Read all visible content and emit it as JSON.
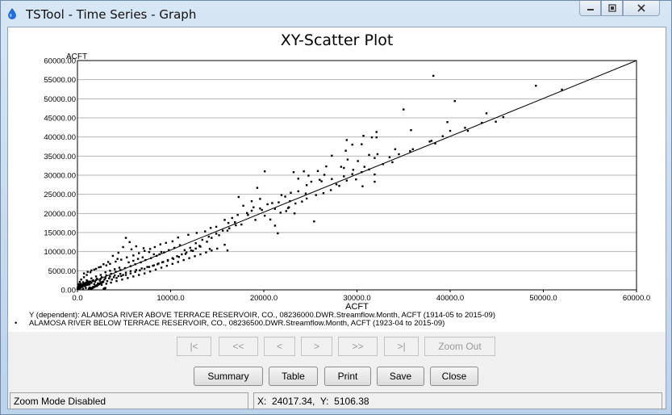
{
  "window": {
    "title": "TSTool - Time Series - Graph",
    "icon": "water-drop-icon",
    "controls": {
      "minimize": "minimize-icon",
      "maximize": "maximize-icon",
      "close": "close-icon"
    }
  },
  "colors": {
    "title_bar": "#c5d9ee",
    "plot_bg": "#ffffff",
    "points": "#000000",
    "grid": "#b4b4b4"
  },
  "chart_data": {
    "type": "scatter",
    "title": "XY-Scatter Plot",
    "xlabel": "ACFT",
    "ylabel": "ACFT",
    "xlim": [
      0,
      60000
    ],
    "ylim": [
      0,
      60000
    ],
    "grid": true,
    "x_ticks": [
      "0.0",
      "10000.0",
      "20000.0",
      "30000.0",
      "40000.0",
      "50000.0",
      "60000.0"
    ],
    "y_ticks": [
      "0.00",
      "5000.00",
      "10000.00",
      "15000.00",
      "20000.00",
      "25000.00",
      "30000.00",
      "35000.00",
      "40000.00",
      "45000.00",
      "50000.00",
      "55000.00",
      "60000.00"
    ],
    "regression_line": {
      "x": [
        0,
        60000
      ],
      "y": [
        500,
        60000
      ]
    },
    "points": [
      [
        38200,
        56000
      ],
      [
        49200,
        53400
      ],
      [
        52000,
        52400
      ],
      [
        40500,
        49400
      ],
      [
        35000,
        47200
      ],
      [
        43900,
        46200
      ],
      [
        45700,
        45200
      ],
      [
        44900,
        44000
      ],
      [
        39700,
        43900
      ],
      [
        41900,
        41600
      ],
      [
        40000,
        41600
      ],
      [
        35800,
        41800
      ],
      [
        32100,
        41300
      ],
      [
        32100,
        39900
      ],
      [
        31600,
        39900
      ],
      [
        30700,
        40300
      ],
      [
        28900,
        39200
      ],
      [
        30500,
        38100
      ],
      [
        29500,
        38000
      ],
      [
        28800,
        36400
      ],
      [
        34100,
        36800
      ],
      [
        32200,
        35500
      ],
      [
        31300,
        35300
      ],
      [
        29000,
        34100
      ],
      [
        27300,
        35100
      ],
      [
        28300,
        32200
      ],
      [
        26700,
        32300
      ],
      [
        31900,
        34500
      ],
      [
        33800,
        33400
      ],
      [
        30100,
        33700
      ],
      [
        29600,
        31400
      ],
      [
        28600,
        31900
      ],
      [
        30500,
        30800
      ],
      [
        31900,
        30200
      ],
      [
        31900,
        28300
      ],
      [
        25800,
        31100
      ],
      [
        24800,
        29900
      ],
      [
        23200,
        30800
      ],
      [
        24300,
        31000
      ],
      [
        26500,
        30100
      ],
      [
        26000,
        28800
      ],
      [
        25100,
        28300
      ],
      [
        24600,
        27400
      ],
      [
        23700,
        29100
      ],
      [
        27300,
        29000
      ],
      [
        29900,
        28900
      ],
      [
        28600,
        29700
      ],
      [
        30600,
        27100
      ],
      [
        29500,
        30300
      ],
      [
        20100,
        31000
      ],
      [
        24500,
        25200
      ],
      [
        23700,
        25800
      ],
      [
        22900,
        25400
      ],
      [
        22300,
        24400
      ],
      [
        21900,
        24800
      ],
      [
        19300,
        26700
      ],
      [
        17300,
        24300
      ],
      [
        21600,
        22900
      ],
      [
        20400,
        22400
      ],
      [
        19600,
        21300
      ],
      [
        18700,
        20700
      ],
      [
        18200,
        20100
      ],
      [
        17200,
        19600
      ],
      [
        16600,
        18800
      ],
      [
        15800,
        18300
      ],
      [
        16200,
        17500
      ],
      [
        14900,
        16500
      ],
      [
        14300,
        16200
      ],
      [
        13700,
        15300
      ],
      [
        12800,
        14900
      ],
      [
        11900,
        14400
      ],
      [
        10800,
        13700
      ],
      [
        10200,
        12700
      ],
      [
        9500,
        12300
      ],
      [
        8900,
        11900
      ],
      [
        8300,
        11200
      ],
      [
        7800,
        10700
      ],
      [
        7200,
        10200
      ],
      [
        6600,
        9600
      ],
      [
        6000,
        9000
      ],
      [
        5300,
        8500
      ],
      [
        4700,
        7900
      ],
      [
        4100,
        7400
      ],
      [
        3500,
        6800
      ],
      [
        3100,
        6400
      ],
      [
        2500,
        6000
      ],
      [
        2000,
        5500
      ],
      [
        1500,
        5100
      ],
      [
        1100,
        4700
      ],
      [
        700,
        4300
      ],
      [
        18300,
        19600
      ],
      [
        18900,
        21600
      ],
      [
        19800,
        20900
      ],
      [
        21200,
        21200
      ],
      [
        21800,
        20200
      ],
      [
        22600,
        21400
      ],
      [
        23400,
        22600
      ],
      [
        22800,
        23200
      ],
      [
        25600,
        24800
      ],
      [
        26400,
        25300
      ],
      [
        27200,
        26100
      ],
      [
        28100,
        27200
      ],
      [
        20700,
        18400
      ],
      [
        21200,
        16800
      ],
      [
        21500,
        14800
      ],
      [
        22400,
        20600
      ],
      [
        25400,
        17900
      ],
      [
        24600,
        23900
      ],
      [
        26200,
        28400
      ],
      [
        16900,
        17700
      ],
      [
        17600,
        17100
      ],
      [
        16100,
        15500
      ],
      [
        15200,
        14300
      ],
      [
        14400,
        13600
      ],
      [
        13900,
        12600
      ],
      [
        15800,
        11800
      ],
      [
        16100,
        10300
      ],
      [
        14200,
        10700
      ],
      [
        13100,
        11500
      ],
      [
        12400,
        10200
      ],
      [
        11600,
        9400
      ],
      [
        10900,
        8600
      ],
      [
        10300,
        8100
      ],
      [
        9700,
        7600
      ],
      [
        9100,
        7200
      ],
      [
        8600,
        6700
      ],
      [
        8100,
        6300
      ],
      [
        7500,
        6000
      ],
      [
        6900,
        5600
      ],
      [
        6300,
        5200
      ],
      [
        5700,
        4900
      ],
      [
        5200,
        4500
      ],
      [
        4600,
        4200
      ],
      [
        4000,
        3800
      ],
      [
        3500,
        3500
      ],
      [
        3000,
        3100
      ],
      [
        2500,
        2900
      ],
      [
        2000,
        2600
      ],
      [
        1600,
        2300
      ],
      [
        1200,
        2000
      ],
      [
        800,
        1700
      ],
      [
        400,
        1400
      ],
      [
        200,
        1100
      ],
      [
        100,
        800
      ],
      [
        50,
        600
      ],
      [
        300,
        400
      ],
      [
        600,
        300
      ],
      [
        900,
        500
      ],
      [
        1300,
        600
      ],
      [
        1700,
        800
      ],
      [
        2100,
        1000
      ],
      [
        2600,
        1300
      ],
      [
        3100,
        1600
      ],
      [
        3600,
        1900
      ],
      [
        4200,
        2300
      ],
      [
        4800,
        2700
      ],
      [
        5400,
        3100
      ],
      [
        6000,
        3500
      ],
      [
        6600,
        3900
      ],
      [
        7200,
        4300
      ],
      [
        7800,
        4800
      ],
      [
        8400,
        5300
      ],
      [
        9000,
        5800
      ],
      [
        9600,
        6300
      ],
      [
        10200,
        6800
      ],
      [
        10800,
        7300
      ],
      [
        11400,
        7800
      ],
      [
        12000,
        8300
      ],
      [
        12600,
        8800
      ],
      [
        13200,
        9300
      ],
      [
        13800,
        9800
      ],
      [
        14400,
        10300
      ],
      [
        15000,
        10800
      ],
      [
        5200,
        13600
      ],
      [
        5600,
        12500
      ],
      [
        4900,
        11200
      ],
      [
        5800,
        10600
      ],
      [
        6300,
        11400
      ],
      [
        7100,
        10900
      ],
      [
        7700,
        9900
      ],
      [
        8200,
        9300
      ],
      [
        4400,
        9700
      ],
      [
        3800,
        8900
      ],
      [
        4300,
        8100
      ],
      [
        3300,
        7300
      ],
      [
        2800,
        6700
      ],
      [
        2300,
        5900
      ],
      [
        1800,
        5300
      ],
      [
        1400,
        4600
      ],
      [
        1000,
        3900
      ],
      [
        700,
        3300
      ],
      [
        400,
        2700
      ],
      [
        250,
        2100
      ],
      [
        150,
        1500
      ],
      [
        90,
        1000
      ],
      [
        60,
        700
      ],
      [
        30,
        400
      ],
      [
        500,
        900
      ],
      [
        900,
        1200
      ],
      [
        1300,
        1400
      ],
      [
        1800,
        1500
      ],
      [
        2200,
        1700
      ],
      [
        2700,
        2000
      ],
      [
        3200,
        2300
      ],
      [
        3700,
        2700
      ],
      [
        4200,
        3100
      ],
      [
        4700,
        3600
      ],
      [
        5200,
        3900
      ],
      [
        5700,
        4300
      ],
      [
        6200,
        4700
      ],
      [
        6700,
        5100
      ],
      [
        7200,
        5500
      ],
      [
        7700,
        6000
      ],
      [
        8200,
        6400
      ],
      [
        8700,
        6900
      ],
      [
        9200,
        7300
      ],
      [
        9700,
        7800
      ],
      [
        10200,
        8300
      ],
      [
        10700,
        8800
      ],
      [
        11200,
        9300
      ],
      [
        11700,
        9800
      ],
      [
        12200,
        10300
      ],
      [
        12700,
        10800
      ],
      [
        13200,
        11300
      ],
      [
        5500,
        7200
      ],
      [
        6000,
        7600
      ],
      [
        6500,
        8100
      ],
      [
        7000,
        8500
      ],
      [
        3000,
        4600
      ],
      [
        3500,
        5000
      ],
      [
        4000,
        5400
      ],
      [
        4500,
        5800
      ],
      [
        2000,
        3500
      ],
      [
        2500,
        3900
      ],
      [
        1500,
        3000
      ],
      [
        1000,
        2500
      ],
      [
        600,
        2000
      ],
      [
        350,
        1600
      ],
      [
        200,
        1200
      ],
      [
        800,
        1000
      ],
      [
        1100,
        1300
      ],
      [
        1500,
        1800
      ],
      [
        1900,
        2100
      ],
      [
        2400,
        2400
      ],
      [
        2900,
        2700
      ],
      [
        3400,
        3000
      ],
      [
        3900,
        3300
      ],
      [
        4400,
        3600
      ],
      [
        4900,
        3900
      ],
      [
        23300,
        20000
      ],
      [
        22700,
        21600
      ],
      [
        24100,
        23100
      ],
      [
        27800,
        27600
      ],
      [
        28900,
        28600
      ],
      [
        31300,
        31500
      ],
      [
        32800,
        32900
      ],
      [
        34500,
        35500
      ],
      [
        36000,
        36800
      ],
      [
        38000,
        39000
      ],
      [
        39200,
        40200
      ],
      [
        41600,
        42400
      ],
      [
        43400,
        43700
      ],
      [
        38400,
        38300
      ],
      [
        37800,
        38800
      ],
      [
        35700,
        36300
      ],
      [
        33500,
        34700
      ],
      [
        30800,
        32200
      ],
      [
        18700,
        23200
      ],
      [
        17800,
        22000
      ],
      [
        19600,
        23800
      ],
      [
        20900,
        22700
      ],
      [
        20100,
        19400
      ],
      [
        19100,
        18300
      ],
      [
        11000,
        11700
      ],
      [
        10400,
        11000
      ],
      [
        9800,
        10400
      ],
      [
        9300,
        9800
      ],
      [
        8800,
        9300
      ],
      [
        12700,
        12200
      ],
      [
        13400,
        13100
      ],
      [
        14100,
        13900
      ],
      [
        14900,
        14700
      ],
      [
        15600,
        15500
      ],
      [
        16300,
        16100
      ],
      [
        17000,
        16900
      ],
      [
        11500,
        10400
      ],
      [
        12100,
        11000
      ],
      [
        9000,
        9900
      ],
      [
        8500,
        8900
      ],
      [
        7900,
        8300
      ],
      [
        7300,
        7800
      ],
      [
        6800,
        7200
      ],
      [
        6200,
        6700
      ],
      [
        5700,
        6200
      ],
      [
        5100,
        5700
      ],
      [
        4600,
        5200
      ],
      [
        4100,
        4700
      ],
      [
        3600,
        4200
      ],
      [
        3100,
        3800
      ],
      [
        2600,
        3300
      ],
      [
        2100,
        2900
      ],
      [
        1700,
        2500
      ],
      [
        1300,
        2100
      ],
      [
        900,
        1700
      ],
      [
        500,
        1300
      ],
      [
        300,
        1000
      ],
      [
        150,
        800
      ]
    ],
    "legend": [
      {
        "marker": "",
        "text": "Y (dependent): ALAMOSA RIVER ABOVE TERRACE RESERVOIR, CO., 08236000.DWR.Streamflow.Month, ACFT (1914-05 to 2015-09)"
      },
      {
        "marker": "•",
        "text": "ALAMOSA RIVER BELOW TERRACE RESERVOIR, CO., 08236500.DWR.Streamflow.Month, ACFT (1923-04 to 2015-09)"
      }
    ]
  },
  "navigation": {
    "first": "|<",
    "prev_page": "<<",
    "prev": "<",
    "next": ">",
    "next_page": ">>",
    "last": ">|",
    "zoom_out": "Zoom Out"
  },
  "buttons": {
    "summary": "Summary",
    "table": "Table",
    "print": "Print",
    "save": "Save",
    "close": "Close"
  },
  "status": {
    "mode": "Zoom Mode Disabled",
    "coords": "X:  24017.34,  Y:  5106.38"
  }
}
